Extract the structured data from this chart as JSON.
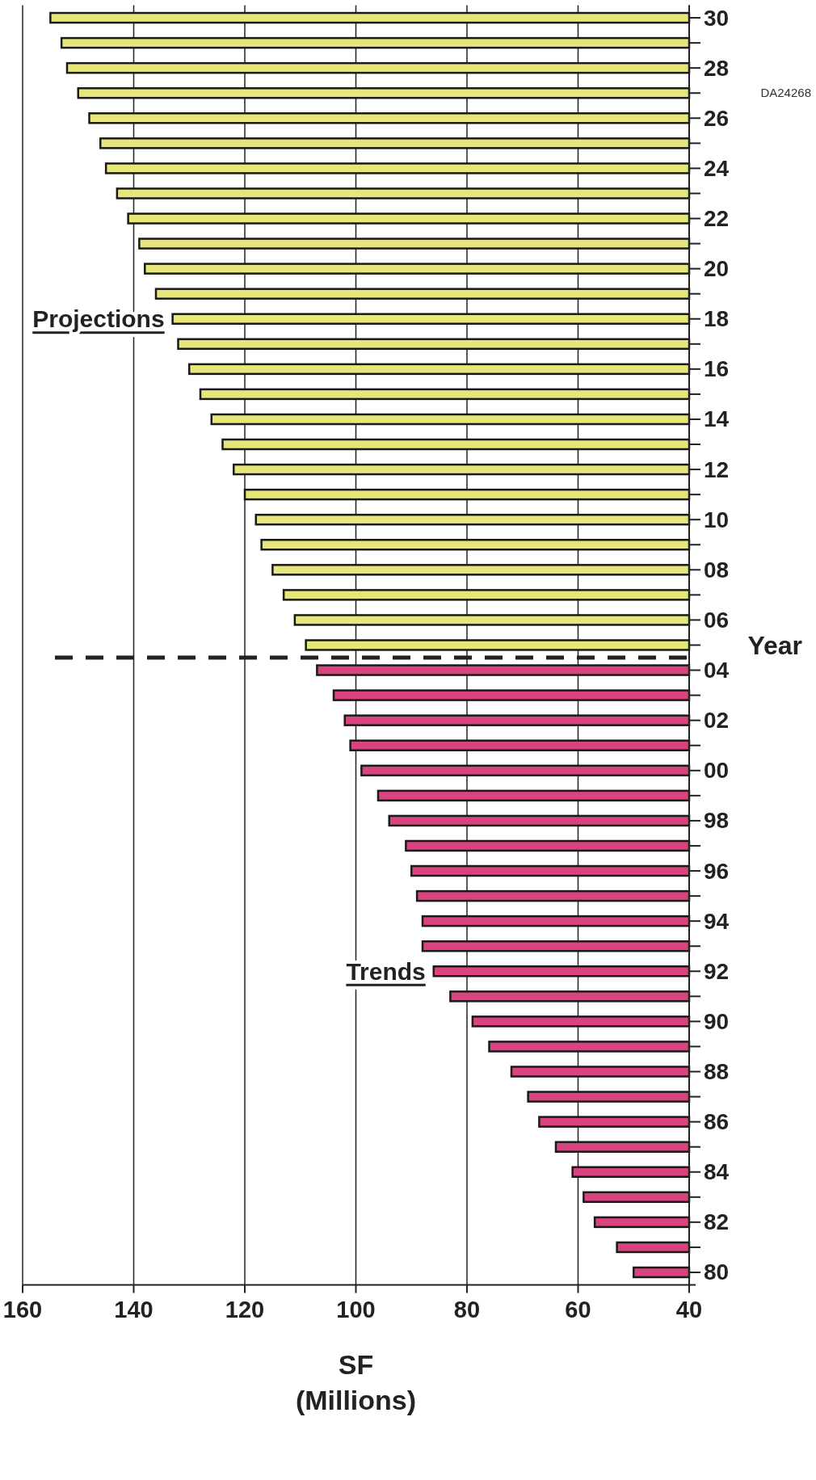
{
  "chart_data": {
    "type": "bar",
    "orientation": "horizontal",
    "xlabel": "SF\n(Millions)",
    "ylabel": "Year",
    "xlim": [
      160,
      40
    ],
    "xticks": [
      160,
      140,
      120,
      100,
      80,
      60,
      40
    ],
    "grid": "x",
    "ylim": [
      1979.5,
      2030.5
    ],
    "yticks": [
      {
        "value": 1980,
        "label": "80"
      },
      {
        "value": 1981,
        "label": null
      },
      {
        "value": 1982,
        "label": "82"
      },
      {
        "value": 1983,
        "label": null
      },
      {
        "value": 1984,
        "label": "84"
      },
      {
        "value": 1985,
        "label": null
      },
      {
        "value": 1986,
        "label": "86"
      },
      {
        "value": 1987,
        "label": null
      },
      {
        "value": 1988,
        "label": "88"
      },
      {
        "value": 1989,
        "label": null
      },
      {
        "value": 1990,
        "label": "90"
      },
      {
        "value": 1991,
        "label": null
      },
      {
        "value": 1992,
        "label": "92"
      },
      {
        "value": 1993,
        "label": null
      },
      {
        "value": 1994,
        "label": "94"
      },
      {
        "value": 1995,
        "label": null
      },
      {
        "value": 1996,
        "label": "96"
      },
      {
        "value": 1997,
        "label": null
      },
      {
        "value": 1998,
        "label": "98"
      },
      {
        "value": 1999,
        "label": null
      },
      {
        "value": 2000,
        "label": "00"
      },
      {
        "value": 2001,
        "label": null
      },
      {
        "value": 2002,
        "label": "02"
      },
      {
        "value": 2003,
        "label": null
      },
      {
        "value": 2004,
        "label": "04"
      },
      {
        "value": 2005,
        "label": null
      },
      {
        "value": 2006,
        "label": "06"
      },
      {
        "value": 2007,
        "label": null
      },
      {
        "value": 2008,
        "label": "08"
      },
      {
        "value": 2009,
        "label": null
      },
      {
        "value": 2010,
        "label": "10"
      },
      {
        "value": 2011,
        "label": null
      },
      {
        "value": 2012,
        "label": "12"
      },
      {
        "value": 2013,
        "label": null
      },
      {
        "value": 2014,
        "label": "14"
      },
      {
        "value": 2015,
        "label": null
      },
      {
        "value": 2016,
        "label": "16"
      },
      {
        "value": 2017,
        "label": null
      },
      {
        "value": 2018,
        "label": "18"
      },
      {
        "value": 2019,
        "label": null
      },
      {
        "value": 2020,
        "label": "20"
      },
      {
        "value": 2021,
        "label": null
      },
      {
        "value": 2022,
        "label": "22"
      },
      {
        "value": 2023,
        "label": null
      },
      {
        "value": 2024,
        "label": "24"
      },
      {
        "value": 2025,
        "label": null
      },
      {
        "value": 2026,
        "label": "26"
      },
      {
        "value": 2027,
        "label": null
      },
      {
        "value": 2028,
        "label": "28"
      },
      {
        "value": 2029,
        "label": null
      },
      {
        "value": 2030,
        "label": "30"
      }
    ],
    "series": [
      {
        "name": "Trends",
        "color": "#d9437f",
        "x": [
          1980,
          1981,
          1982,
          1983,
          1984,
          1985,
          1986,
          1987,
          1988,
          1989,
          1990,
          1991,
          1992,
          1993,
          1994,
          1995,
          1996,
          1997,
          1998,
          1999,
          2000,
          2001,
          2002,
          2003,
          2004
        ],
        "values": [
          50,
          53,
          57,
          59,
          61,
          64,
          67,
          69,
          72,
          76,
          79,
          83,
          86,
          88,
          88,
          89,
          90,
          91,
          94,
          96,
          99,
          101,
          102,
          104,
          107
        ]
      },
      {
        "name": "Projections",
        "color": "#e6e67a",
        "x": [
          2005,
          2006,
          2007,
          2008,
          2009,
          2010,
          2011,
          2012,
          2013,
          2014,
          2015,
          2016,
          2017,
          2018,
          2019,
          2020,
          2021,
          2022,
          2023,
          2024,
          2025,
          2026,
          2027,
          2028,
          2029,
          2030
        ],
        "values": [
          109,
          111,
          113,
          115,
          117,
          118,
          120,
          122,
          124,
          126,
          128,
          130,
          132,
          133,
          136,
          138,
          139,
          141,
          143,
          145,
          146,
          148,
          150,
          152,
          153,
          155
        ]
      }
    ],
    "ref_lines": [
      {
        "axis": "y",
        "value": 2004.5,
        "line_style": "dashed",
        "color": "#222222"
      }
    ],
    "annotations": [
      "DA24268"
    ]
  }
}
